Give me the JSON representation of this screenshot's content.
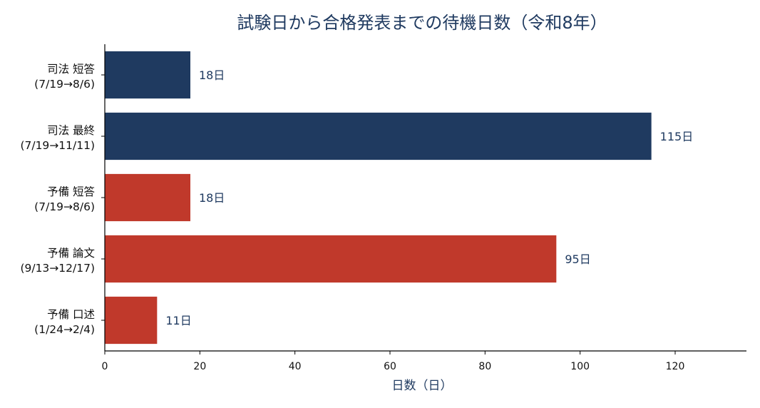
{
  "chart_data": {
    "type": "bar",
    "orientation": "horizontal",
    "title": "試験日から合格発表までの待機日数（令和8年）",
    "xlabel": "日数（日）",
    "ylabel": "",
    "xlim": [
      0,
      135
    ],
    "xticks": [
      0,
      20,
      40,
      60,
      80,
      100,
      120
    ],
    "grid": false,
    "value_suffix": "日",
    "categories": [
      {
        "line1": "司法 短答",
        "line2": "(7/19→8/6)"
      },
      {
        "line1": "司法 最終",
        "line2": "(7/19→11/11)"
      },
      {
        "line1": "予備 短答",
        "line2": "(7/19→8/6)"
      },
      {
        "line1": "予備 論文",
        "line2": "(9/13→12/17)"
      },
      {
        "line1": "予備 口述",
        "line2": "(1/24→2/4)"
      }
    ],
    "values": [
      18,
      115,
      18,
      95,
      11
    ],
    "colors": [
      "#1f3a60",
      "#1f3a60",
      "#c0392b",
      "#c0392b",
      "#c0392b"
    ]
  }
}
